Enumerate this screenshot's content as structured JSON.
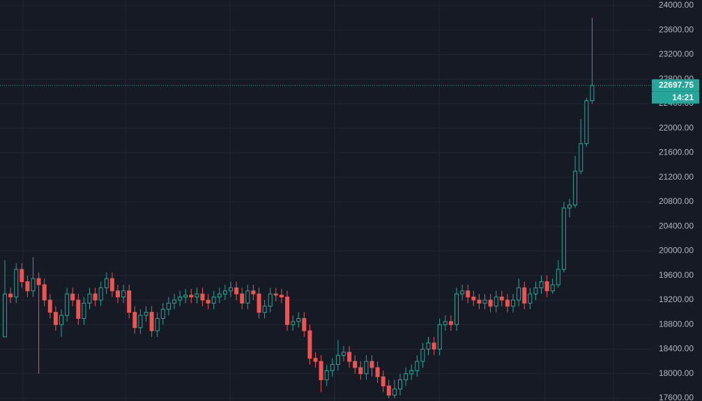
{
  "chart_data": {
    "type": "candlestick",
    "up_color": "#26a69a",
    "down_color": "#ef5350",
    "ylim": [
      17600,
      24000
    ],
    "yticks": [
      {
        "value": 24000,
        "label": "24000.00"
      },
      {
        "value": 23600,
        "label": "23600.00"
      },
      {
        "value": 23200,
        "label": "23200.00"
      },
      {
        "value": 22800,
        "label": "22800.00"
      },
      {
        "value": 22400,
        "label": "22400.00"
      },
      {
        "value": 22000,
        "label": "22000.00"
      },
      {
        "value": 21600,
        "label": "21600.00"
      },
      {
        "value": 21200,
        "label": "21200.00"
      },
      {
        "value": 20800,
        "label": "20800.00"
      },
      {
        "value": 20400,
        "label": "20400.00"
      },
      {
        "value": 20000,
        "label": "20000.00"
      },
      {
        "value": 19600,
        "label": "19600.00"
      },
      {
        "value": 19200,
        "label": "19200.00"
      },
      {
        "value": 18800,
        "label": "18800.00"
      },
      {
        "value": 18400,
        "label": "18400.00"
      },
      {
        "value": 18000,
        "label": "18000.00"
      },
      {
        "value": 17600,
        "label": "17600.00"
      }
    ],
    "grid": true,
    "last_price": {
      "value": 22697.75,
      "label": "22697.75"
    },
    "countdown": "14:21",
    "open": [
      18600,
      19300,
      19250,
      19700,
      19500,
      19350,
      19550,
      19450,
      19200,
      19000,
      18800,
      18950,
      19300,
      19200,
      18900,
      19150,
      19300,
      19200,
      19400,
      19550,
      19350,
      19250,
      19350,
      19000,
      18750,
      18950,
      19000,
      18700,
      18900,
      19050,
      19150,
      19200,
      19250,
      19280,
      19250,
      19300,
      19200,
      19150,
      19250,
      19300,
      19350,
      19400,
      19300,
      19150,
      19350,
      19300,
      19000,
      19100,
      19300,
      19280,
      19250,
      18800,
      18850,
      18900,
      18700,
      18250,
      18200,
      17900,
      18050,
      18150,
      18300,
      18350,
      18200,
      18100,
      18000,
      18200,
      18100,
      17950,
      17800,
      17650,
      17750,
      17900,
      18000,
      18050,
      18200,
      18400,
      18500,
      18400,
      18800,
      18850,
      18800,
      19300,
      19350,
      19250,
      19200,
      19150,
      19200,
      19100,
      19250,
      19200,
      19100,
      19200,
      19400,
      19150,
      19300,
      19400,
      19500,
      19350,
      19450,
      19700,
      20700,
      20750,
      21300,
      21750,
      22450
    ],
    "high": [
      19850,
      19400,
      19800,
      19800,
      19600,
      19900,
      19650,
      19550,
      19300,
      19100,
      19050,
      19400,
      19400,
      19300,
      19250,
      19400,
      19400,
      19500,
      19650,
      19650,
      19450,
      19450,
      19450,
      19100,
      19050,
      19100,
      19100,
      19000,
      19150,
      19250,
      19300,
      19350,
      19380,
      19380,
      19400,
      19400,
      19300,
      19350,
      19400,
      19450,
      19500,
      19500,
      19400,
      19450,
      19450,
      19400,
      19200,
      19400,
      19400,
      19380,
      19350,
      18950,
      19000,
      19000,
      18800,
      18350,
      18300,
      18150,
      18250,
      18550,
      18450,
      18450,
      18300,
      18200,
      18300,
      18300,
      18200,
      18050,
      17900,
      17900,
      18000,
      18100,
      18150,
      18300,
      18500,
      18600,
      18600,
      18900,
      18950,
      18950,
      19400,
      19450,
      19450,
      19350,
      19300,
      19300,
      19300,
      19350,
      19350,
      19300,
      19300,
      19550,
      19500,
      19400,
      19500,
      19600,
      19600,
      19550,
      19850,
      20800,
      20850,
      21550,
      22150,
      22500,
      23800
    ],
    "low": [
      18600,
      19150,
      19150,
      19400,
      19250,
      19250,
      18000,
      19100,
      18900,
      18700,
      18600,
      18850,
      19100,
      18800,
      18800,
      19050,
      19100,
      19100,
      19300,
      19250,
      19150,
      19150,
      18900,
      18650,
      18650,
      18850,
      18600,
      18600,
      18800,
      18950,
      19050,
      19100,
      19150,
      19150,
      19150,
      19100,
      19050,
      19050,
      19150,
      19200,
      19250,
      19200,
      19050,
      19050,
      19200,
      18900,
      18900,
      19000,
      19180,
      19150,
      18700,
      18700,
      18750,
      18600,
      18150,
      18100,
      17700,
      17800,
      17950,
      18050,
      18200,
      18100,
      18000,
      17900,
      17900,
      17950,
      17850,
      17700,
      17600,
      17600,
      17650,
      17800,
      17900,
      17950,
      18100,
      18300,
      18300,
      18300,
      18700,
      18700,
      18700,
      19200,
      19150,
      19100,
      19050,
      19050,
      19000,
      19000,
      19100,
      19000,
      19000,
      19100,
      19050,
      19050,
      19200,
      19300,
      19250,
      19300,
      19400,
      19650,
      20550,
      20700,
      21250,
      21700,
      22400
    ],
    "close": [
      19300,
      19250,
      19700,
      19500,
      19350,
      19550,
      19450,
      19200,
      19000,
      18800,
      18950,
      19300,
      19200,
      18900,
      19150,
      19300,
      19200,
      19400,
      19550,
      19350,
      19250,
      19350,
      19000,
      18750,
      18950,
      19000,
      18700,
      18900,
      19050,
      19150,
      19200,
      19250,
      19280,
      19250,
      19300,
      19200,
      19150,
      19250,
      19300,
      19350,
      19400,
      19300,
      19150,
      19350,
      19300,
      19000,
      19100,
      19300,
      19280,
      19250,
      18800,
      18850,
      18900,
      18700,
      18250,
      18200,
      17900,
      18050,
      18150,
      18300,
      18350,
      18200,
      18100,
      18000,
      18200,
      18100,
      17950,
      17800,
      17650,
      17750,
      17900,
      18000,
      18050,
      18200,
      18400,
      18500,
      18400,
      18800,
      18850,
      18800,
      19300,
      19350,
      19250,
      19200,
      19150,
      19200,
      19100,
      19250,
      19200,
      19100,
      19200,
      19400,
      19150,
      19300,
      19400,
      19500,
      19350,
      19450,
      19700,
      20700,
      20750,
      21300,
      21750,
      22450,
      22697.75
    ]
  }
}
